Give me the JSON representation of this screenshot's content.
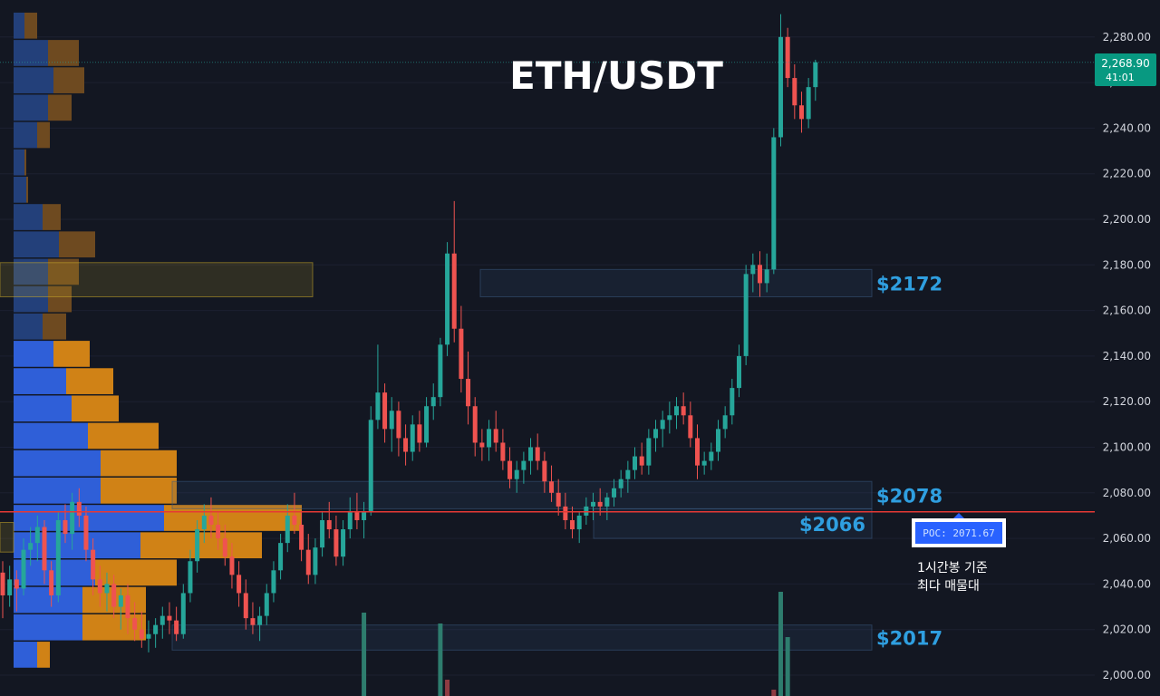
{
  "chart_data": {
    "type": "candlestick",
    "title": "ETH/USDT",
    "ylim": [
      1990,
      2290
    ],
    "y_ticks": [
      "2,280.00",
      "2,260.00",
      "2,240.00",
      "2,220.00",
      "2,200.00",
      "2,180.00",
      "2,160.00",
      "2,140.00",
      "2,120.00",
      "2,100.00",
      "2,080.00",
      "2,060.00",
      "2,040.00",
      "2,020.00",
      "2,000.00"
    ],
    "y_tick_values": [
      2280,
      2260,
      2240,
      2220,
      2200,
      2180,
      2160,
      2140,
      2120,
      2100,
      2080,
      2060,
      2040,
      2020,
      2000
    ],
    "last_price": {
      "value": 2268.9,
      "label": "2,268.90",
      "countdown": "41:01"
    },
    "poc": {
      "value": 2071.67,
      "label": "POC: 2071.67"
    },
    "levels": [
      {
        "label": "$2172",
        "low": 2166,
        "high": 2178
      },
      {
        "label": "$2078",
        "low": 2073,
        "high": 2085
      },
      {
        "label": "$2066",
        "low": 2060,
        "high": 2073
      },
      {
        "label": "$2017",
        "low": 2011,
        "high": 2022
      }
    ],
    "annotation": [
      "1시간봉 기준",
      "최다 매물대"
    ],
    "candles": [
      [
        2045,
        2050,
        2025,
        2035
      ],
      [
        2035,
        2048,
        2030,
        2042
      ],
      [
        2042,
        2046,
        2028,
        2038
      ],
      [
        2038,
        2060,
        2035,
        2055
      ],
      [
        2055,
        2065,
        2048,
        2058
      ],
      [
        2058,
        2070,
        2050,
        2065
      ],
      [
        2065,
        2068,
        2040,
        2046
      ],
      [
        2046,
        2050,
        2030,
        2035
      ],
      [
        2035,
        2072,
        2032,
        2068
      ],
      [
        2068,
        2075,
        2058,
        2062
      ],
      [
        2062,
        2080,
        2055,
        2076
      ],
      [
        2076,
        2082,
        2065,
        2070
      ],
      [
        2070,
        2074,
        2050,
        2055
      ],
      [
        2055,
        2060,
        2035,
        2042
      ],
      [
        2042,
        2048,
        2030,
        2036
      ],
      [
        2036,
        2045,
        2028,
        2040
      ],
      [
        2040,
        2044,
        2025,
        2030
      ],
      [
        2030,
        2038,
        2020,
        2035
      ],
      [
        2035,
        2040,
        2018,
        2025
      ],
      [
        2025,
        2032,
        2015,
        2020
      ],
      [
        2020,
        2028,
        2012,
        2016
      ],
      [
        2016,
        2024,
        2010,
        2018
      ],
      [
        2018,
        2025,
        2012,
        2022
      ],
      [
        2022,
        2030,
        2016,
        2026
      ],
      [
        2026,
        2032,
        2018,
        2024
      ],
      [
        2024,
        2030,
        2015,
        2018
      ],
      [
        2018,
        2040,
        2016,
        2036
      ],
      [
        2036,
        2055,
        2032,
        2050
      ],
      [
        2050,
        2068,
        2045,
        2064
      ],
      [
        2064,
        2075,
        2058,
        2070
      ],
      [
        2070,
        2078,
        2060,
        2066
      ],
      [
        2066,
        2072,
        2055,
        2060
      ],
      [
        2060,
        2066,
        2048,
        2052
      ],
      [
        2052,
        2058,
        2038,
        2044
      ],
      [
        2044,
        2050,
        2030,
        2036
      ],
      [
        2036,
        2042,
        2020,
        2025
      ],
      [
        2025,
        2032,
        2018,
        2022
      ],
      [
        2022,
        2030,
        2015,
        2026
      ],
      [
        2026,
        2040,
        2022,
        2036
      ],
      [
        2036,
        2050,
        2032,
        2046
      ],
      [
        2046,
        2062,
        2042,
        2058
      ],
      [
        2058,
        2075,
        2054,
        2070
      ],
      [
        2070,
        2080,
        2062,
        2066
      ],
      [
        2066,
        2072,
        2050,
        2055
      ],
      [
        2055,
        2062,
        2040,
        2044
      ],
      [
        2044,
        2060,
        2040,
        2056
      ],
      [
        2056,
        2072,
        2052,
        2068
      ],
      [
        2068,
        2076,
        2060,
        2064
      ],
      [
        2064,
        2070,
        2048,
        2052
      ],
      [
        2052,
        2068,
        2048,
        2064
      ],
      [
        2064,
        2078,
        2060,
        2072
      ],
      [
        2072,
        2080,
        2064,
        2068
      ],
      [
        2068,
        2076,
        2060,
        2072
      ],
      [
        2072,
        2118,
        2070,
        2112
      ],
      [
        2112,
        2145,
        2108,
        2124
      ],
      [
        2124,
        2128,
        2102,
        2108
      ],
      [
        2108,
        2122,
        2098,
        2116
      ],
      [
        2116,
        2120,
        2096,
        2104
      ],
      [
        2104,
        2110,
        2092,
        2098
      ],
      [
        2098,
        2114,
        2094,
        2110
      ],
      [
        2110,
        2116,
        2098,
        2102
      ],
      [
        2102,
        2122,
        2100,
        2118
      ],
      [
        2118,
        2128,
        2112,
        2122
      ],
      [
        2122,
        2148,
        2118,
        2145
      ],
      [
        2145,
        2190,
        2140,
        2185
      ],
      [
        2185,
        2208,
        2146,
        2152
      ],
      [
        2152,
        2162,
        2124,
        2130
      ],
      [
        2130,
        2142,
        2110,
        2118
      ],
      [
        2118,
        2122,
        2096,
        2102
      ],
      [
        2102,
        2108,
        2094,
        2100
      ],
      [
        2100,
        2112,
        2094,
        2108
      ],
      [
        2108,
        2116,
        2098,
        2102
      ],
      [
        2102,
        2108,
        2090,
        2094
      ],
      [
        2094,
        2100,
        2082,
        2086
      ],
      [
        2086,
        2094,
        2080,
        2090
      ],
      [
        2090,
        2098,
        2084,
        2094
      ],
      [
        2094,
        2104,
        2088,
        2100
      ],
      [
        2100,
        2106,
        2090,
        2094
      ],
      [
        2094,
        2098,
        2080,
        2085
      ],
      [
        2085,
        2092,
        2076,
        2080
      ],
      [
        2080,
        2086,
        2070,
        2074
      ],
      [
        2074,
        2080,
        2064,
        2068
      ],
      [
        2068,
        2074,
        2060,
        2064
      ],
      [
        2064,
        2072,
        2058,
        2070
      ],
      [
        2070,
        2078,
        2066,
        2074
      ],
      [
        2074,
        2080,
        2068,
        2076
      ],
      [
        2076,
        2082,
        2070,
        2074
      ],
      [
        2074,
        2080,
        2068,
        2078
      ],
      [
        2078,
        2086,
        2074,
        2082
      ],
      [
        2082,
        2090,
        2078,
        2086
      ],
      [
        2086,
        2094,
        2080,
        2090
      ],
      [
        2090,
        2100,
        2086,
        2096
      ],
      [
        2096,
        2102,
        2088,
        2092
      ],
      [
        2092,
        2108,
        2088,
        2104
      ],
      [
        2104,
        2112,
        2098,
        2108
      ],
      [
        2108,
        2116,
        2100,
        2112
      ],
      [
        2112,
        2120,
        2106,
        2114
      ],
      [
        2114,
        2122,
        2108,
        2118
      ],
      [
        2118,
        2124,
        2110,
        2114
      ],
      [
        2114,
        2120,
        2100,
        2104
      ],
      [
        2104,
        2110,
        2086,
        2092
      ],
      [
        2092,
        2098,
        2088,
        2094
      ],
      [
        2094,
        2102,
        2090,
        2098
      ],
      [
        2098,
        2112,
        2094,
        2108
      ],
      [
        2108,
        2118,
        2104,
        2114
      ],
      [
        2114,
        2130,
        2110,
        2126
      ],
      [
        2126,
        2145,
        2122,
        2140
      ],
      [
        2140,
        2180,
        2136,
        2176
      ],
      [
        2176,
        2185,
        2168,
        2180
      ],
      [
        2180,
        2186,
        2166,
        2172
      ],
      [
        2172,
        2185,
        2168,
        2178
      ],
      [
        2178,
        2240,
        2176,
        2236
      ],
      [
        2236,
        2290,
        2232,
        2280
      ],
      [
        2280,
        2284,
        2258,
        2262
      ],
      [
        2262,
        2268,
        2244,
        2250
      ],
      [
        2250,
        2256,
        2238,
        2244
      ],
      [
        2244,
        2262,
        2240,
        2258
      ],
      [
        2258,
        2270,
        2252,
        2268.9
      ]
    ],
    "volume_profile": [
      {
        "price": 2285,
        "buy": 12,
        "sell": 14
      },
      {
        "price": 2273,
        "buy": 38,
        "sell": 34
      },
      {
        "price": 2261,
        "buy": 44,
        "sell": 34
      },
      {
        "price": 2249,
        "buy": 38,
        "sell": 26
      },
      {
        "price": 2237,
        "buy": 26,
        "sell": 14
      },
      {
        "price": 2225,
        "buy": 12,
        "sell": 2
      },
      {
        "price": 2213,
        "buy": 14,
        "sell": 2
      },
      {
        "price": 2201,
        "buy": 32,
        "sell": 20
      },
      {
        "price": 2189,
        "buy": 50,
        "sell": 40
      },
      {
        "price": 2177,
        "buy": 38,
        "sell": 34
      },
      {
        "price": 2165,
        "buy": 38,
        "sell": 26
      },
      {
        "price": 2153,
        "buy": 32,
        "sell": 26
      },
      {
        "price": 2141,
        "buy": 44,
        "sell": 40
      },
      {
        "price": 2129,
        "buy": 58,
        "sell": 52
      },
      {
        "price": 2117,
        "buy": 64,
        "sell": 52
      },
      {
        "price": 2105,
        "buy": 82,
        "sell": 78
      },
      {
        "price": 2093,
        "buy": 96,
        "sell": 84
      },
      {
        "price": 2081,
        "buy": 96,
        "sell": 84
      },
      {
        "price": 2069,
        "buy": 166,
        "sell": 152
      },
      {
        "price": 2057,
        "buy": 140,
        "sell": 134
      },
      {
        "price": 2045,
        "buy": 90,
        "sell": 90
      },
      {
        "price": 2033,
        "buy": 76,
        "sell": 70
      },
      {
        "price": 2021,
        "buy": 76,
        "sell": 70
      },
      {
        "price": 2009,
        "buy": 26,
        "sell": 14
      }
    ],
    "volume": [
      {
        "index": 52,
        "value": 92,
        "color": "#2e7d6e"
      },
      {
        "index": 63,
        "value": 80,
        "color": "#2e7d6e"
      },
      {
        "index": 64,
        "value": 18,
        "color": "#8f3b42"
      },
      {
        "index": 112,
        "value": 115,
        "color": "#2e7d6e"
      },
      {
        "index": 113,
        "value": 65,
        "color": "#2e7d6e"
      },
      {
        "index": 111,
        "value": 7,
        "color": "#8f3b42"
      }
    ]
  }
}
